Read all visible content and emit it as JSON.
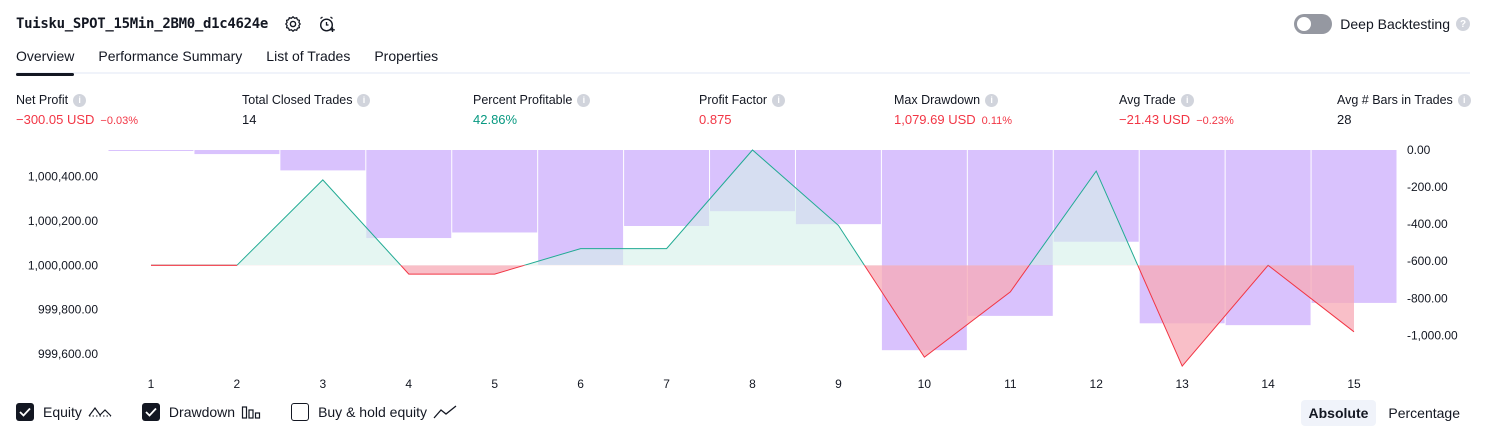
{
  "header": {
    "strategy_name": "Tuisku_SPOT_15Min_2BM0_d1c4624e",
    "settings_icon": "gear-icon",
    "alert_icon": "alarm-clock-plus-icon"
  },
  "deep_backtesting": {
    "label": "Deep Backtesting",
    "enabled": false,
    "help_icon": "question-icon"
  },
  "tabs": [
    {
      "label": "Overview",
      "active": true
    },
    {
      "label": "Performance Summary",
      "active": false
    },
    {
      "label": "List of Trades",
      "active": false
    },
    {
      "label": "Properties",
      "active": false
    }
  ],
  "metrics": [
    {
      "label": "Net Profit",
      "value": "−300.05 USD",
      "pct": "−0.03%",
      "color": "red"
    },
    {
      "label": "Total Closed Trades",
      "value": "14",
      "pct": "",
      "color": "neutral"
    },
    {
      "label": "Percent Profitable",
      "value": "42.86%",
      "pct": "",
      "color": "green"
    },
    {
      "label": "Profit Factor",
      "value": "0.875",
      "pct": "",
      "color": "red"
    },
    {
      "label": "Max Drawdown",
      "value": "1,079.69 USD",
      "pct": "0.11%",
      "color": "red"
    },
    {
      "label": "Avg Trade",
      "value": "−21.43 USD",
      "pct": "−0.23%",
      "color": "red"
    },
    {
      "label": "Avg # Bars in Trades",
      "value": "28",
      "pct": "",
      "color": "neutral"
    }
  ],
  "chart_data": {
    "type": "line",
    "x": [
      1,
      2,
      3,
      4,
      5,
      6,
      7,
      8,
      9,
      10,
      11,
      12,
      13,
      14,
      15
    ],
    "x_ticks": [
      "1",
      "2",
      "3",
      "4",
      "5",
      "6",
      "7",
      "8",
      "9",
      "10",
      "11",
      "12",
      "13",
      "14",
      "15"
    ],
    "equity": {
      "name": "Equity",
      "baseline": 1000000,
      "values": [
        1000000,
        1000000,
        1000385,
        999960,
        999960,
        1000075,
        1000075,
        1000520,
        1000180,
        999585,
        999880,
        1000425,
        999545,
        1000000,
        999700
      ]
    },
    "drawdown": {
      "name": "Drawdown",
      "values": [
        -3,
        -22,
        -110,
        -475,
        -445,
        -620,
        -410,
        -330,
        -400,
        -1080,
        -895,
        -495,
        -935,
        -945,
        -825
      ]
    },
    "left_axis": {
      "ticks": [
        "1,000,400.00",
        "1,000,200.00",
        "1,000,000.00",
        "999,800.00",
        "999,600.00"
      ],
      "tick_values": [
        1000400,
        1000200,
        1000000,
        999800,
        999600
      ],
      "range": [
        999550,
        1000520
      ]
    },
    "right_axis": {
      "ticks": [
        "0.00",
        "-200.00",
        "-400.00",
        "-600.00",
        "-800.00",
        "-1,000.00"
      ],
      "tick_values": [
        0,
        -200,
        -400,
        -600,
        -800,
        -1000
      ],
      "range": [
        -1160,
        0
      ]
    },
    "colors": {
      "drawdown_bar": "#d9c2fd",
      "equity_up_line": "#22ab94",
      "equity_down_line": "#f23645",
      "equity_up_fill": "#d3f0ea",
      "equity_down_fill": "#f7a9b6"
    }
  },
  "legend": [
    {
      "label": "Equity",
      "checked": true,
      "icon": "equity-line-icon"
    },
    {
      "label": "Drawdown",
      "checked": true,
      "icon": "bars-icon"
    },
    {
      "label": "Buy & hold equity",
      "checked": false,
      "icon": "trend-line-icon"
    }
  ],
  "modes": [
    {
      "label": "Absolute",
      "active": true
    },
    {
      "label": "Percentage",
      "active": false
    }
  ]
}
